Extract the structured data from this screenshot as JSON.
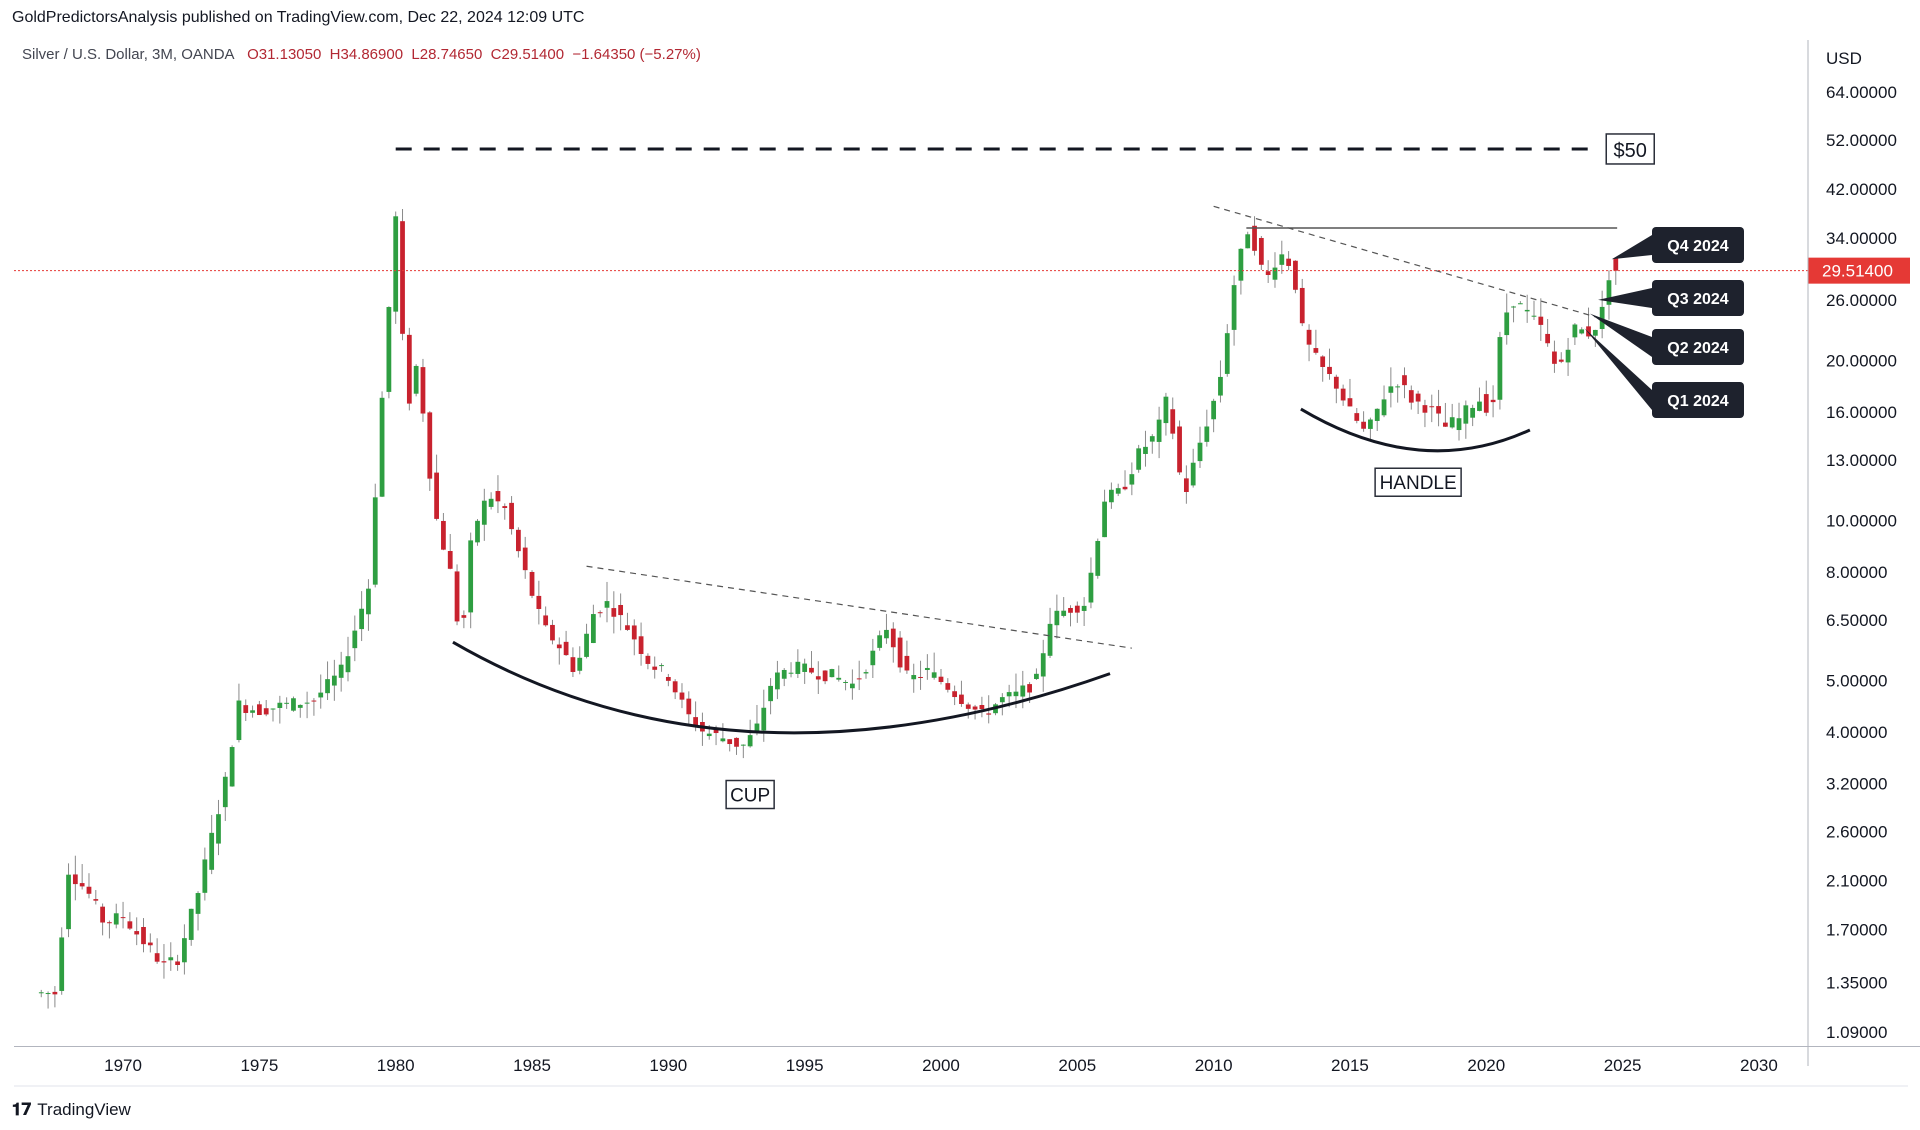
{
  "header": {
    "publisher": "GoldPredictorsAnalysis published on TradingView.com, Dec 22, 2024 12:09 UTC",
    "symbol": "Silver / U.S. Dollar, 3M, OANDA",
    "open": "O31.13050",
    "high": "H34.86900",
    "low": "L28.74650",
    "close": "C29.51400",
    "change": "−1.64350 (−5.27%)"
  },
  "footer": {
    "brand": "TradingView",
    "logo": "tradingview-logo-icon"
  },
  "colors": {
    "up": "#2e9e41",
    "down": "#c8222e",
    "wick": "#8a8a8a",
    "price_line": "#e53935",
    "annotation": "#1e222d"
  },
  "chart_data": {
    "type": "candlestick",
    "currency": "USD",
    "scale": "log",
    "current_price": 29.514,
    "current_price_label": "29.51400",
    "y_ticks": [
      "64.00000",
      "52.00000",
      "42.00000",
      "34.00000",
      "26.00000",
      "20.00000",
      "16.00000",
      "13.00000",
      "10.00000",
      "8.00000",
      "6.50000",
      "5.00000",
      "4.00000",
      "3.20000",
      "2.60000",
      "2.10000",
      "1.70000",
      "1.35000",
      "1.09000"
    ],
    "x_ticks": [
      "1970",
      "1975",
      "1980",
      "1985",
      "1990",
      "1995",
      "2000",
      "2005",
      "2010",
      "2015",
      "2020",
      "2025",
      "2030"
    ],
    "x_range": [
      1966.0,
      2031.8
    ],
    "y_range": [
      0.98,
      80
    ],
    "candles_anchor": [
      [
        1966.8,
        1.29
      ],
      [
        1967.5,
        1.29
      ],
      [
        1968.0,
        2.2
      ],
      [
        1968.7,
        2.0
      ],
      [
        1969.3,
        1.75
      ],
      [
        1970.0,
        1.8
      ],
      [
        1970.8,
        1.6
      ],
      [
        1971.5,
        1.45
      ],
      [
        1972.0,
        1.5
      ],
      [
        1972.7,
        1.95
      ],
      [
        1973.3,
        2.6
      ],
      [
        1973.8,
        3.3
      ],
      [
        1974.2,
        4.5
      ],
      [
        1975.0,
        4.4
      ],
      [
        1976.0,
        4.5
      ],
      [
        1977.0,
        4.6
      ],
      [
        1978.0,
        5.2
      ],
      [
        1979.0,
        7.5
      ],
      [
        1979.6,
        20.0
      ],
      [
        1980.0,
        37.0
      ],
      [
        1980.4,
        16.0
      ],
      [
        1980.8,
        20.0
      ],
      [
        1981.4,
        10.5
      ],
      [
        1982.0,
        8.0
      ],
      [
        1982.4,
        5.8
      ],
      [
        1982.8,
        9.5
      ],
      [
        1983.4,
        11.2
      ],
      [
        1984.0,
        10.5
      ],
      [
        1984.8,
        7.8
      ],
      [
        1985.4,
        6.3
      ],
      [
        1986.0,
        5.8
      ],
      [
        1986.6,
        5.2
      ],
      [
        1987.3,
        6.8
      ],
      [
        1987.8,
        7.0
      ],
      [
        1988.6,
        6.2
      ],
      [
        1989.3,
        5.4
      ],
      [
        1990.0,
        5.1
      ],
      [
        1990.7,
        4.3
      ],
      [
        1991.3,
        4.0
      ],
      [
        1992.0,
        3.9
      ],
      [
        1992.7,
        3.75
      ],
      [
        1993.2,
        4.0
      ],
      [
        1993.8,
        5.0
      ],
      [
        1994.5,
        5.3
      ],
      [
        1995.3,
        5.2
      ],
      [
        1996.0,
        5.1
      ],
      [
        1996.8,
        4.9
      ],
      [
        1997.5,
        5.6
      ],
      [
        1998.0,
        6.3
      ],
      [
        1998.8,
        5.0
      ],
      [
        1999.5,
        5.2
      ],
      [
        2000.2,
        4.9
      ],
      [
        2000.8,
        4.6
      ],
      [
        2001.5,
        4.3
      ],
      [
        2002.2,
        4.6
      ],
      [
        2002.8,
        4.7
      ],
      [
        2003.5,
        5.0
      ],
      [
        2004.0,
        6.5
      ],
      [
        2004.6,
        6.8
      ],
      [
        2005.3,
        7.0
      ],
      [
        2006.0,
        11.0
      ],
      [
        2006.6,
        11.3
      ],
      [
        2007.3,
        13.5
      ],
      [
        2007.9,
        14.5
      ],
      [
        2008.3,
        17.0
      ],
      [
        2008.9,
        11.0
      ],
      [
        2009.5,
        14.0
      ],
      [
        2010.2,
        18.0
      ],
      [
        2010.8,
        29.0
      ],
      [
        2011.3,
        36.0
      ],
      [
        2011.9,
        28.0
      ],
      [
        2012.4,
        32.0
      ],
      [
        2012.9,
        30.0
      ],
      [
        2013.3,
        22.0
      ],
      [
        2013.9,
        19.5
      ],
      [
        2014.5,
        18.0
      ],
      [
        2015.0,
        16.0
      ],
      [
        2015.6,
        14.5
      ],
      [
        2016.2,
        17.0
      ],
      [
        2016.7,
        18.5
      ],
      [
        2017.3,
        16.8
      ],
      [
        2017.9,
        16.3
      ],
      [
        2018.5,
        15.0
      ],
      [
        2019.0,
        15.5
      ],
      [
        2019.7,
        17.0
      ],
      [
        2020.2,
        16.0
      ],
      [
        2020.6,
        24.0
      ],
      [
        2021.0,
        26.0
      ],
      [
        2021.5,
        24.5
      ],
      [
        2022.0,
        23.0
      ],
      [
        2022.6,
        19.0
      ],
      [
        2023.2,
        23.0
      ],
      [
        2023.8,
        22.5
      ],
      [
        2024.2,
        24.0
      ],
      [
        2024.5,
        29.0
      ],
      [
        2024.8,
        31.1
      ],
      [
        2025.0,
        29.5
      ]
    ],
    "annotations": {
      "resistance_label": "$50",
      "resistance_value": 50,
      "cup_label": "CUP",
      "handle_label": "HANDLE",
      "quarters": [
        "Q4 2024",
        "Q3 2024",
        "Q2 2024",
        "Q1 2024"
      ]
    }
  }
}
